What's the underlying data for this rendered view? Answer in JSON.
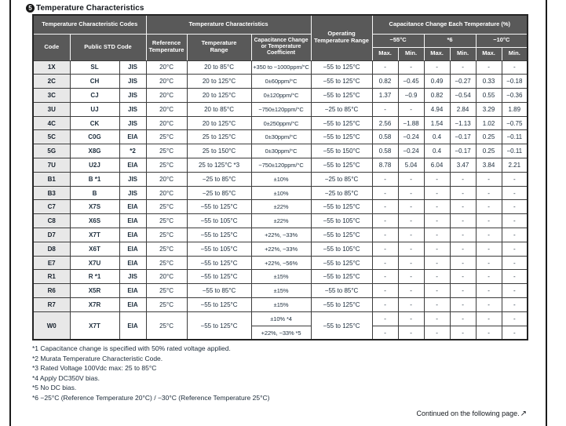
{
  "page": {
    "section_badge": "5",
    "section_title": "Temperature Characteristics",
    "continued_note": "Continued on the following page.",
    "continued_arrow": "↗"
  },
  "table": {
    "header": {
      "group_codes": "Temperature Characteristic Codes",
      "group_chars": "Temperature Characteristics",
      "col_code": "Code",
      "col_public_std": "Public STD Code",
      "col_ref_temp": "Reference Temperature",
      "col_temp_range": "Temperature Range",
      "col_cap_change": "Capacitance Change or Temperature Coefficient",
      "col_op_range": "Operating Temperature Range",
      "group_cap_each": "Capacitance Change Each Temperature (%)",
      "sub_minus55": "−55°C",
      "sub_star6": "*6",
      "sub_minus10": "−10°C",
      "max_label": "Max.",
      "min_label": "Min."
    },
    "rows": [
      {
        "c": [
          "1X",
          "SL",
          "JIS",
          "20°C",
          "20 to 85°C",
          "+350 to −1000ppm/°C",
          "−55 to 125°C",
          "-",
          "-",
          "-",
          "-",
          "-",
          "-"
        ]
      },
      {
        "c": [
          "2C",
          "CH",
          "JIS",
          "20°C",
          "20 to 125°C",
          "0±60ppm/°C",
          "−55 to 125°C",
          "0.82",
          "−0.45",
          "0.49",
          "−0.27",
          "0.33",
          "−0.18"
        ]
      },
      {
        "c": [
          "3C",
          "CJ",
          "JIS",
          "20°C",
          "20 to 125°C",
          "0±120ppm/°C",
          "−55 to 125°C",
          "1.37",
          "−0.9",
          "0.82",
          "−0.54",
          "0.55",
          "−0.36"
        ]
      },
      {
        "c": [
          "3U",
          "UJ",
          "JIS",
          "20°C",
          "20 to 85°C",
          "−750±120ppm/°C",
          "−25 to 85°C",
          "-",
          "-",
          "4.94",
          "2.84",
          "3.29",
          "1.89"
        ]
      },
      {
        "c": [
          "4C",
          "CK",
          "JIS",
          "20°C",
          "20 to 125°C",
          "0±250ppm/°C",
          "−55 to 125°C",
          "2.56",
          "−1.88",
          "1.54",
          "−1.13",
          "1.02",
          "−0.75"
        ]
      },
      {
        "c": [
          "5C",
          "C0G",
          "EIA",
          "25°C",
          "25 to 125°C",
          "0±30ppm/°C",
          "−55 to 125°C",
          "0.58",
          "−0.24",
          "0.4",
          "−0.17",
          "0.25",
          "−0.11"
        ]
      },
      {
        "c": [
          "5G",
          "X8G",
          "*2",
          "25°C",
          "25 to 150°C",
          "0±30ppm/°C",
          "−55 to 150°C",
          "0.58",
          "−0.24",
          "0.4",
          "−0.17",
          "0.25",
          "−0.11"
        ]
      },
      {
        "c": [
          "7U",
          "U2J",
          "EIA",
          "25°C",
          "25 to 125°C *3",
          "−750±120ppm/°C",
          "−55 to 125°C",
          "8.78",
          "5.04",
          "6.04",
          "3.47",
          "3.84",
          "2.21"
        ]
      },
      {
        "c": [
          "B1",
          "B *1",
          "JIS",
          "20°C",
          "−25 to 85°C",
          "±10%",
          "−25 to 85°C",
          "-",
          "-",
          "-",
          "-",
          "-",
          "-"
        ]
      },
      {
        "c": [
          "B3",
          "B",
          "JIS",
          "20°C",
          "−25 to 85°C",
          "±10%",
          "−25 to 85°C",
          "-",
          "-",
          "-",
          "-",
          "-",
          "-"
        ]
      },
      {
        "c": [
          "C7",
          "X7S",
          "EIA",
          "25°C",
          "−55 to 125°C",
          "±22%",
          "−55 to 125°C",
          "-",
          "-",
          "-",
          "-",
          "-",
          "-"
        ]
      },
      {
        "c": [
          "C8",
          "X6S",
          "EIA",
          "25°C",
          "−55 to 105°C",
          "±22%",
          "−55 to 105°C",
          "-",
          "-",
          "-",
          "-",
          "-",
          "-"
        ]
      },
      {
        "c": [
          "D7",
          "X7T",
          "EIA",
          "25°C",
          "−55 to 125°C",
          "+22%, −33%",
          "−55 to 125°C",
          "-",
          "-",
          "-",
          "-",
          "-",
          "-"
        ]
      },
      {
        "c": [
          "D8",
          "X6T",
          "EIA",
          "25°C",
          "−55 to 105°C",
          "+22%, −33%",
          "−55 to 105°C",
          "-",
          "-",
          "-",
          "-",
          "-",
          "-"
        ]
      },
      {
        "c": [
          "E7",
          "X7U",
          "EIA",
          "25°C",
          "−55 to 125°C",
          "+22%, −56%",
          "−55 to 125°C",
          "-",
          "-",
          "-",
          "-",
          "-",
          "-"
        ]
      },
      {
        "c": [
          "R1",
          "R *1",
          "JIS",
          "20°C",
          "−55 to 125°C",
          "±15%",
          "−55 to 125°C",
          "-",
          "-",
          "-",
          "-",
          "-",
          "-"
        ]
      },
      {
        "c": [
          "R6",
          "X5R",
          "EIA",
          "25°C",
          "−55 to 85°C",
          "±15%",
          "−55 to 85°C",
          "-",
          "-",
          "-",
          "-",
          "-",
          "-"
        ]
      },
      {
        "c": [
          "R7",
          "X7R",
          "EIA",
          "25°C",
          "−55 to 125°C",
          "±15%",
          "−55 to 125°C",
          "-",
          "-",
          "-",
          "-",
          "-",
          "-"
        ]
      },
      {
        "c": [
          "W0",
          "X7T",
          "EIA",
          "25°C",
          "−55 to 125°C"
        ],
        "op": "−55 to 125°C",
        "sub": [
          {
            "cap": "±10% *4",
            "vals": [
              "-",
              "-",
              "-",
              "-",
              "-",
              "-"
            ]
          },
          {
            "cap": "+22%, −33% *5",
            "vals": [
              "-",
              "-",
              "-",
              "-",
              "-",
              "-"
            ]
          }
        ]
      }
    ]
  },
  "footnotes": [
    "*1 Capacitance change is specified with 50% rated voltage applied.",
    "*2 Murata Temperature Characteristic Code.",
    "*3 Rated Voltage 100Vdc max: 25 to 85°C",
    "*4 Apply DC350V bias.",
    "*5 No DC bias.",
    "*6 −25°C (Reference Temperature 20°C) / −30°C (Reference Temperature 25°C)"
  ]
}
